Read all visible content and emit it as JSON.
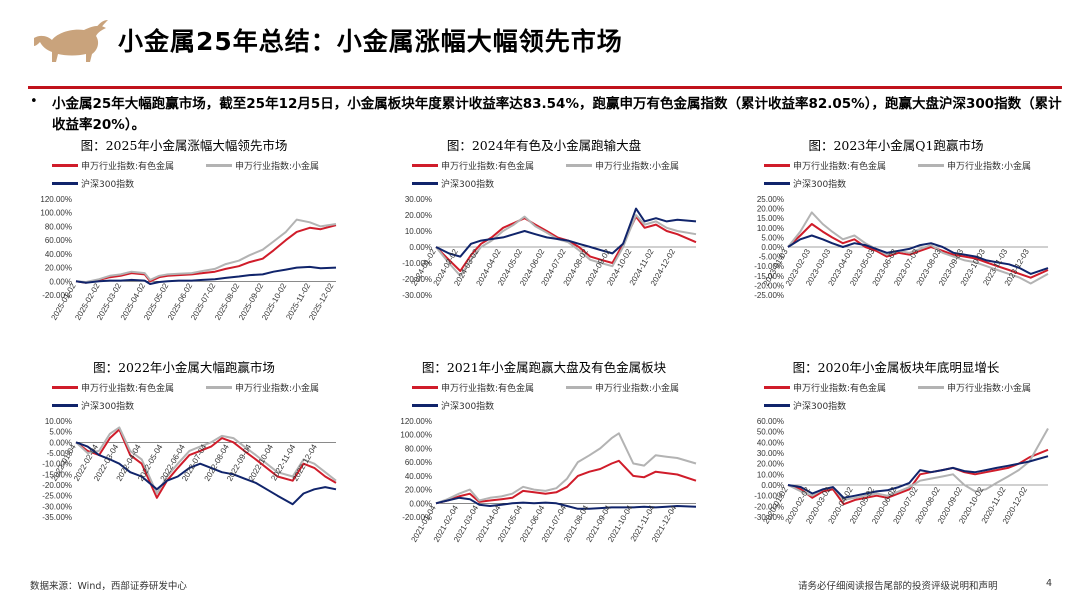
{
  "header": {
    "title": "小金属25年总结：小金属涨幅大幅领先市场"
  },
  "summary": {
    "bullet": "•",
    "text": "小金属25年大幅跑赢市场，截至25年12月5日，小金属板块年度累计收益率达83.54%，跑赢申万有色金属指数（累计收益率82.05%），跑赢大盘沪深300指数（累计收益率20%）。"
  },
  "footer": {
    "source": "数据来源：Wind，西部证券研发中心",
    "disclaimer": "请务必仔细阅读报告尾部的投资评级说明和声明",
    "page": "4"
  },
  "colors": {
    "red": "#d01c2a",
    "gray": "#b3b3b3",
    "navy": "#10246b",
    "accent": "#c0121b",
    "brand": "#c9a37c"
  },
  "chart_data": [
    {
      "type": "line",
      "title": "图：2025年小金属涨幅大幅领先市场",
      "legend": [
        "申万行业指数:有色金属",
        "申万行业指数:小金属",
        "沪深300指数"
      ],
      "ylim": [
        -20,
        120
      ],
      "yticks": [
        -20,
        0,
        20,
        40,
        60,
        80,
        100,
        120
      ],
      "ytick_labels": [
        "-20.00%",
        "0.00%",
        "20.00%",
        "40.00%",
        "60.00%",
        "80.00%",
        "100.00%",
        "120.00%"
      ],
      "xtick_labels": [
        "2025-01-02",
        "2025-02-02",
        "2025-03-02",
        "2025-04-02",
        "2025-05-02",
        "2025-06-02",
        "2025-07-02",
        "2025-08-02",
        "2025-09-02",
        "2025-10-02",
        "2025-11-02",
        "2025-12-02"
      ],
      "x": [
        "2025-01-02",
        "2025-01-15",
        "2025-02-01",
        "2025-02-15",
        "2025-03-01",
        "2025-03-15",
        "2025-04-01",
        "2025-04-08",
        "2025-04-20",
        "2025-05-01",
        "2025-05-15",
        "2025-06-01",
        "2025-06-15",
        "2025-07-01",
        "2025-07-15",
        "2025-08-01",
        "2025-08-15",
        "2025-09-01",
        "2025-09-15",
        "2025-10-01",
        "2025-10-15",
        "2025-11-01",
        "2025-11-15",
        "2025-12-05"
      ],
      "series": [
        {
          "name": "申万行业指数:有色金属",
          "color": "#d01c2a",
          "values": [
            0,
            -2,
            2,
            6,
            8,
            12,
            10,
            0,
            6,
            8,
            9,
            10,
            12,
            14,
            18,
            22,
            28,
            33,
            45,
            60,
            72,
            78,
            76,
            82
          ]
        },
        {
          "name": "申万行业指数:小金属",
          "color": "#b3b3b3",
          "values": [
            0,
            -1,
            3,
            8,
            10,
            14,
            12,
            2,
            8,
            10,
            11,
            12,
            15,
            18,
            25,
            30,
            38,
            46,
            58,
            72,
            90,
            86,
            80,
            83.5
          ]
        },
        {
          "name": "沪深300指数",
          "color": "#10246b",
          "values": [
            0,
            -2,
            0,
            1,
            1,
            2,
            1,
            -4,
            -1,
            0,
            1,
            1,
            2,
            3,
            5,
            7,
            9,
            10,
            14,
            17,
            20,
            21,
            19,
            20
          ]
        }
      ]
    },
    {
      "type": "line",
      "title": "图：2024年有色及小金属跑输大盘",
      "legend": [
        "申万行业指数:有色金属",
        "申万行业指数:小金属",
        "沪深300指数"
      ],
      "ylim": [
        -30,
        30
      ],
      "yticks": [
        -30,
        -20,
        -10,
        0,
        10,
        20,
        30
      ],
      "ytick_labels": [
        "-30.00%",
        "-20.00%",
        "-10.00%",
        "0.00%",
        "10.00%",
        "20.00%",
        "30.00%"
      ],
      "xtick_labels": [
        "2024-01-02",
        "2024-02-02",
        "2024-03-02",
        "2024-04-02",
        "2024-05-02",
        "2024-06-02",
        "2024-07-02",
        "2024-08-02",
        "2024-09-02",
        "2024-10-02",
        "2024-11-02",
        "2024-12-02"
      ],
      "x": [
        "2024-01-02",
        "2024-01-20",
        "2024-02-05",
        "2024-02-20",
        "2024-03-05",
        "2024-03-20",
        "2024-04-05",
        "2024-04-20",
        "2024-05-05",
        "2024-05-20",
        "2024-06-05",
        "2024-06-20",
        "2024-07-05",
        "2024-07-20",
        "2024-08-05",
        "2024-08-20",
        "2024-09-05",
        "2024-09-20",
        "2024-10-08",
        "2024-10-20",
        "2024-11-05",
        "2024-11-20",
        "2024-12-05",
        "2024-12-31"
      ],
      "series": [
        {
          "name": "申万行业指数:有色金属",
          "color": "#d01c2a",
          "values": [
            0,
            -8,
            -15,
            -5,
            2,
            6,
            12,
            15,
            18,
            14,
            10,
            6,
            4,
            0,
            -6,
            -8,
            -10,
            2,
            19,
            12,
            14,
            10,
            8,
            3
          ]
        },
        {
          "name": "申万行业指数:小金属",
          "color": "#b3b3b3",
          "values": [
            0,
            -10,
            -18,
            -8,
            0,
            4,
            10,
            14,
            19,
            13,
            9,
            5,
            3,
            -2,
            -8,
            -10,
            -12,
            0,
            20,
            14,
            16,
            12,
            10,
            8
          ]
        },
        {
          "name": "沪深300指数",
          "color": "#10246b",
          "values": [
            0,
            -4,
            -6,
            2,
            4,
            5,
            6,
            8,
            10,
            8,
            6,
            5,
            4,
            2,
            0,
            -2,
            -4,
            2,
            24,
            16,
            18,
            16,
            17,
            16
          ]
        }
      ]
    },
    {
      "type": "line",
      "title": "图：2023年小金属Q1跑赢市场",
      "legend": [
        "申万行业指数:有色金属",
        "申万行业指数:小金属",
        "沪深300指数"
      ],
      "ylim": [
        -25,
        25
      ],
      "yticks": [
        -25,
        -20,
        -15,
        -10,
        -5,
        0,
        5,
        10,
        15,
        20,
        25
      ],
      "ytick_labels": [
        "-25.00%",
        "-20.00%",
        "-15.00%",
        "-10.00%",
        "-5.00%",
        "0.00%",
        "5.00%",
        "10.00%",
        "15.00%",
        "20.00%",
        "25.00%"
      ],
      "xtick_labels": [
        "2023-01-03",
        "2023-02-03",
        "2023-03-03",
        "2023-04-03",
        "2023-05-03",
        "2023-06-03",
        "2023-07-03",
        "2023-08-03",
        "2023-09-03",
        "2023-10-03",
        "2023-11-03",
        "2023-12-03"
      ],
      "x": [
        "2023-01-03",
        "2023-01-20",
        "2023-02-05",
        "2023-02-20",
        "2023-03-05",
        "2023-03-20",
        "2023-04-05",
        "2023-04-20",
        "2023-05-05",
        "2023-05-20",
        "2023-06-05",
        "2023-06-20",
        "2023-07-05",
        "2023-07-20",
        "2023-08-05",
        "2023-08-20",
        "2023-09-05",
        "2023-09-20",
        "2023-10-05",
        "2023-10-20",
        "2023-11-05",
        "2023-11-20",
        "2023-12-05",
        "2023-12-29"
      ],
      "series": [
        {
          "name": "申万行业指数:有色金属",
          "color": "#d01c2a",
          "values": [
            0,
            6,
            12,
            8,
            5,
            2,
            4,
            0,
            -2,
            -5,
            -3,
            -4,
            -2,
            0,
            -2,
            -4,
            -5,
            -6,
            -8,
            -10,
            -12,
            -14,
            -16,
            -12
          ]
        },
        {
          "name": "申万行业指数:小金属",
          "color": "#b3b3b3",
          "values": [
            0,
            8,
            18,
            12,
            8,
            4,
            6,
            2,
            -1,
            -4,
            -2,
            -3,
            -1,
            1,
            -3,
            -5,
            -7,
            -8,
            -10,
            -12,
            -14,
            -16,
            -19,
            -14
          ]
        },
        {
          "name": "沪深300指数",
          "color": "#10246b",
          "values": [
            0,
            4,
            6,
            4,
            2,
            0,
            2,
            1,
            -1,
            -3,
            -2,
            -1,
            1,
            2,
            0,
            -3,
            -4,
            -5,
            -7,
            -8,
            -9,
            -11,
            -14,
            -11
          ]
        }
      ]
    },
    {
      "type": "line",
      "title": "图：2022年小金属大幅跑赢市场",
      "legend": [
        "申万行业指数:有色金属",
        "申万行业指数:小金属",
        "沪深300指数"
      ],
      "ylim": [
        -35,
        10
      ],
      "yticks": [
        -35,
        -30,
        -25,
        -20,
        -15,
        -10,
        -5,
        0,
        5,
        10
      ],
      "ytick_labels": [
        "-35.00%",
        "-30.00%",
        "-25.00%",
        "-20.00%",
        "-15.00%",
        "-10.00%",
        "-5.00%",
        "0.00%",
        "5.00%",
        "10.00%"
      ],
      "xtick_labels": [
        "2022-01-04",
        "2022-02-04",
        "2022-03-04",
        "2022-04-04",
        "2022-05-04",
        "2022-06-04",
        "2022-07-04",
        "2022-08-04",
        "2022-09-04",
        "2022-10-04",
        "2022-11-04",
        "2022-12-04"
      ],
      "x": [
        "2022-01-04",
        "2022-01-20",
        "2022-02-05",
        "2022-02-20",
        "2022-03-05",
        "2022-03-20",
        "2022-04-05",
        "2022-04-26",
        "2022-05-10",
        "2022-05-25",
        "2022-06-10",
        "2022-06-25",
        "2022-07-10",
        "2022-07-25",
        "2022-08-10",
        "2022-08-25",
        "2022-09-10",
        "2022-09-25",
        "2022-10-10",
        "2022-10-31",
        "2022-11-15",
        "2022-11-30",
        "2022-12-15",
        "2022-12-30"
      ],
      "series": [
        {
          "name": "申万行业指数:有色金属",
          "color": "#d01c2a",
          "values": [
            0,
            -4,
            -6,
            2,
            6,
            -6,
            -10,
            -26,
            -18,
            -12,
            -6,
            -4,
            -2,
            2,
            0,
            -4,
            -8,
            -12,
            -16,
            -18,
            -10,
            -12,
            -16,
            -19
          ]
        },
        {
          "name": "申万行业指数:小金属",
          "color": "#b3b3b3",
          "values": [
            0,
            -5,
            -4,
            4,
            7,
            -4,
            -8,
            -24,
            -16,
            -10,
            -4,
            -2,
            0,
            3,
            2,
            -2,
            -6,
            -10,
            -14,
            -16,
            -8,
            -10,
            -14,
            -18
          ]
        },
        {
          "name": "沪深300指数",
          "color": "#10246b",
          "values": [
            0,
            -2,
            -6,
            -8,
            -10,
            -14,
            -16,
            -22,
            -18,
            -16,
            -12,
            -10,
            -12,
            -14,
            -15,
            -17,
            -19,
            -22,
            -25,
            -29,
            -24,
            -22,
            -21,
            -22
          ]
        }
      ]
    },
    {
      "type": "line",
      "title": "图：2021年小金属跑赢大盘及有色金属板块",
      "legend": [
        "申万行业指数:有色金属",
        "申万行业指数:小金属",
        "沪深300指数"
      ],
      "ylim": [
        -20,
        120
      ],
      "yticks": [
        -20,
        0,
        20,
        40,
        60,
        80,
        100,
        120
      ],
      "ytick_labels": [
        "-20.00%",
        "0.00%",
        "20.00%",
        "40.00%",
        "60.00%",
        "80.00%",
        "100.00%",
        "120.00%"
      ],
      "xtick_labels": [
        "2021-01-04",
        "2021-02-04",
        "2021-03-04",
        "2021-04-04",
        "2021-05-04",
        "2021-06-04",
        "2021-07-04",
        "2021-08-04",
        "2021-09-04",
        "2021-10-04",
        "2021-11-04",
        "2021-12-04"
      ],
      "x": [
        "2021-01-04",
        "2021-01-20",
        "2021-02-05",
        "2021-02-20",
        "2021-03-05",
        "2021-03-20",
        "2021-04-05",
        "2021-04-20",
        "2021-05-05",
        "2021-05-20",
        "2021-06-05",
        "2021-06-20",
        "2021-07-05",
        "2021-07-20",
        "2021-08-05",
        "2021-08-20",
        "2021-09-05",
        "2021-09-15",
        "2021-10-05",
        "2021-10-20",
        "2021-11-05",
        "2021-11-20",
        "2021-12-05",
        "2021-12-31"
      ],
      "series": [
        {
          "name": "申万行业指数:有色金属",
          "color": "#d01c2a",
          "values": [
            0,
            4,
            10,
            14,
            2,
            4,
            6,
            8,
            18,
            16,
            14,
            16,
            24,
            40,
            46,
            50,
            58,
            62,
            40,
            38,
            46,
            44,
            42,
            33
          ]
        },
        {
          "name": "申万行业指数:小金属",
          "color": "#b3b3b3",
          "values": [
            0,
            6,
            14,
            20,
            4,
            8,
            10,
            14,
            24,
            20,
            18,
            22,
            36,
            60,
            70,
            80,
            95,
            102,
            58,
            55,
            70,
            68,
            66,
            58
          ]
        },
        {
          "name": "沪深300指数",
          "color": "#10246b",
          "values": [
            0,
            4,
            8,
            6,
            -2,
            -4,
            -2,
            0,
            1,
            0,
            1,
            0,
            -4,
            -8,
            -8,
            -7,
            -6,
            -6,
            -6,
            -5,
            -6,
            -5,
            -4,
            -5
          ]
        }
      ]
    },
    {
      "type": "line",
      "title": "图：2020年小金属板块年底明显增长",
      "legend": [
        "申万行业指数:有色金属",
        "申万行业指数:小金属",
        "沪深300指数"
      ],
      "ylim": [
        -30,
        60
      ],
      "yticks": [
        -30,
        -20,
        -10,
        0,
        10,
        20,
        30,
        40,
        50,
        60
      ],
      "ytick_labels": [
        "-30.00%",
        "-20.00%",
        "-10.00%",
        "0.00%",
        "10.00%",
        "20.00%",
        "30.00%",
        "40.00%",
        "50.00%",
        "60.00%"
      ],
      "xtick_labels": [
        "2020-01-02",
        "2020-02-02",
        "2020-03-02",
        "2020-04-02",
        "2020-05-02",
        "2020-06-02",
        "2020-07-02",
        "2020-08-02",
        "2020-09-02",
        "2020-10-02",
        "2020-11-02",
        "2020-12-02"
      ],
      "x": [
        "2020-01-02",
        "2020-01-20",
        "2020-02-05",
        "2020-02-20",
        "2020-03-05",
        "2020-03-20",
        "2020-04-05",
        "2020-04-20",
        "2020-05-05",
        "2020-05-20",
        "2020-06-05",
        "2020-06-20",
        "2020-07-05",
        "2020-07-20",
        "2020-08-05",
        "2020-08-20",
        "2020-09-05",
        "2020-09-20",
        "2020-10-05",
        "2020-10-20",
        "2020-11-05",
        "2020-11-20",
        "2020-12-05",
        "2020-12-31"
      ],
      "series": [
        {
          "name": "申万行业指数:有色金属",
          "color": "#d01c2a",
          "values": [
            0,
            -4,
            -12,
            -6,
            -4,
            -18,
            -14,
            -12,
            -10,
            -12,
            -8,
            -4,
            10,
            12,
            14,
            16,
            12,
            10,
            12,
            14,
            16,
            20,
            26,
            33
          ]
        },
        {
          "name": "申万行业指数:小金属",
          "color": "#b3b3b3",
          "values": [
            0,
            -6,
            -10,
            -4,
            -2,
            -14,
            -12,
            -10,
            -8,
            -10,
            -6,
            -2,
            4,
            6,
            8,
            10,
            0,
            -6,
            -4,
            2,
            8,
            14,
            22,
            53
          ]
        },
        {
          "name": "沪深300指数",
          "color": "#10246b",
          "values": [
            0,
            -2,
            -8,
            -4,
            -2,
            -12,
            -10,
            -8,
            -6,
            -5,
            -2,
            2,
            14,
            12,
            14,
            16,
            13,
            12,
            14,
            16,
            18,
            20,
            22,
            27
          ]
        }
      ]
    }
  ]
}
